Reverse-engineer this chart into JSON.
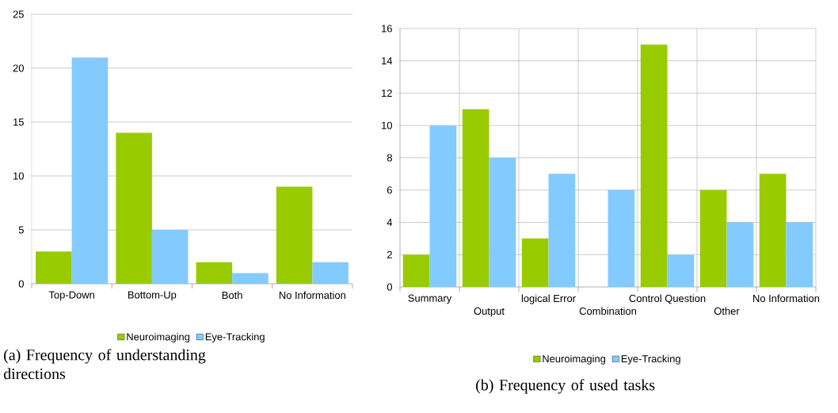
{
  "chart_data": [
    {
      "type": "bar",
      "title": "(a) Frequency of understanding directions",
      "categories": [
        "Top-Down",
        "Bottom-Up",
        "Both",
        "No Information"
      ],
      "series": [
        {
          "name": "Neuroimaging",
          "color": "#99cc00",
          "values": [
            3,
            14,
            2,
            9
          ]
        },
        {
          "name": "Eye-Tracking",
          "color": "#83caff",
          "values": [
            21,
            5,
            1,
            2
          ]
        }
      ],
      "ylim": [
        0,
        25
      ],
      "yticks": [
        0,
        5,
        10,
        15,
        20,
        25
      ],
      "grid": "y",
      "legend": "bottom"
    },
    {
      "type": "bar",
      "title": "(b) Frequency of used tasks",
      "categories": [
        "Summary",
        "Output",
        "logical Error",
        "Combination",
        "Control Question",
        "Other",
        "No Information"
      ],
      "series": [
        {
          "name": "Neuroimaging",
          "color": "#99cc00",
          "values": [
            2,
            11,
            3,
            0,
            15,
            6,
            7
          ]
        },
        {
          "name": "Eye-Tracking",
          "color": "#83caff",
          "values": [
            10,
            8,
            7,
            6,
            2,
            4,
            4
          ]
        }
      ],
      "ylim": [
        0,
        16
      ],
      "yticks": [
        0,
        2,
        4,
        6,
        8,
        10,
        12,
        14,
        16
      ],
      "grid": true,
      "legend": "bottom"
    }
  ]
}
